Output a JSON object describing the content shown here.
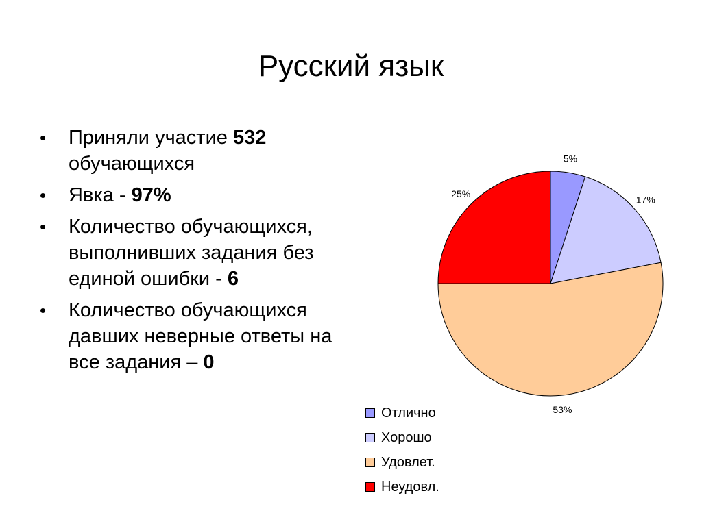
{
  "slide": {
    "title": "Русский язык"
  },
  "bullets": [
    {
      "text": "Приняли участие ",
      "bold": "532",
      "tail": " обучающихся"
    },
    {
      "text": "Явка - ",
      "bold": "97%",
      "tail": ""
    },
    {
      "text": "Количество обучающихся, выполнивших задания без единой ошибки - ",
      "bold": "6",
      "tail": ""
    },
    {
      "text": "Количество обучающихся давших неверные ответы на все задания – ",
      "bold": "0",
      "tail": ""
    }
  ],
  "chart_data": {
    "type": "pie",
    "title": "",
    "categories": [
      "Отлично",
      "Хорошо",
      "Удовлет.",
      "Неудовл."
    ],
    "values": [
      5,
      17,
      53,
      25
    ],
    "data_labels": [
      "5%",
      "17%",
      "53%",
      "25%"
    ],
    "colors": [
      "#9999ff",
      "#ccccff",
      "#ffcc99",
      "#ff0000"
    ],
    "start_angle_deg": 0,
    "direction": "clockwise",
    "legend_position": "bottom-left"
  }
}
